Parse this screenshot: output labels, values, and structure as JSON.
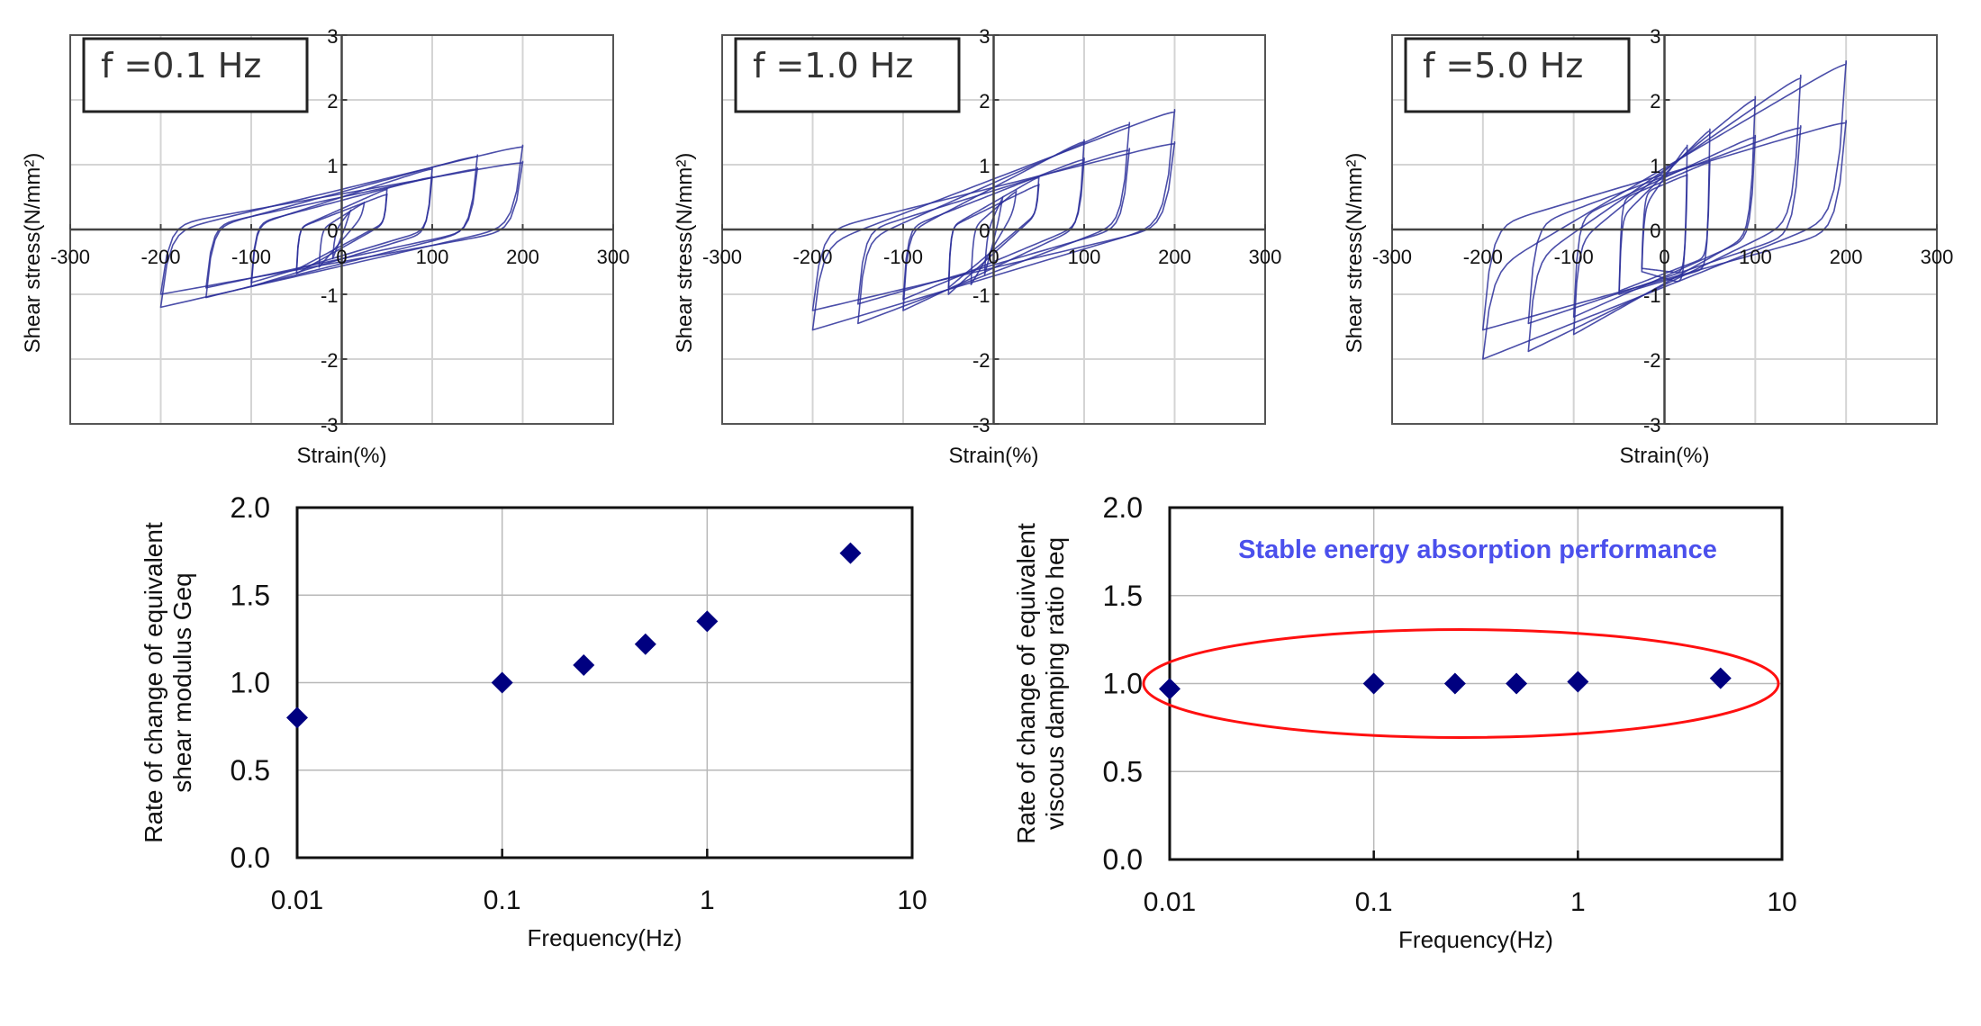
{
  "hysteresis_charts": [
    {
      "id": "f01",
      "label": "f =0.1 Hz",
      "xlabel": "Strain(%)",
      "ylabel": "Shear stress(N/mm²)",
      "xticks": [
        "-300",
        "-200",
        "-100",
        "0",
        "100",
        "200",
        "300"
      ],
      "yticks": [
        "3",
        "2",
        "1",
        "0",
        "-1",
        "-2",
        "-3"
      ]
    },
    {
      "id": "f10",
      "label": "f =1.0 Hz",
      "xlabel": "Strain(%)",
      "ylabel": "Shear stress(N/mm²)",
      "xticks": [
        "-300",
        "-200",
        "-100",
        "0",
        "100",
        "200",
        "300"
      ],
      "yticks": [
        "3",
        "2",
        "1",
        "0",
        "-1",
        "-2",
        "-3"
      ]
    },
    {
      "id": "f50",
      "label": "f =5.0 Hz",
      "xlabel": "Strain(%)",
      "ylabel": "Shear stress(N/mm²)",
      "xticks": [
        "-300",
        "-200",
        "-100",
        "0",
        "100",
        "200",
        "300"
      ],
      "yticks": [
        "3",
        "2",
        "1",
        "0",
        "-1",
        "-2",
        "-3"
      ]
    }
  ],
  "scatter_charts": [
    {
      "id": "geq",
      "ylabel_line1": "Rate of change of equivalent",
      "ylabel_line2": "shear modulus Geq",
      "xlabel": "Frequency(Hz)",
      "xticks": [
        "0.01",
        "0.1",
        "1",
        "10"
      ],
      "yticks": [
        "2.0",
        "1.5",
        "1.0",
        "0.5",
        "0.0"
      ]
    },
    {
      "id": "heq",
      "ylabel_line1": "Rate of change of equivalent",
      "ylabel_line2": "viscous damping ratio heq",
      "xlabel": "Frequency(Hz)",
      "xticks": [
        "0.01",
        "0.1",
        "1",
        "10"
      ],
      "yticks": [
        "2.0",
        "1.5",
        "1.0",
        "0.5",
        "0.0"
      ],
      "annotation": "Stable energy absorption performance"
    }
  ],
  "colors": {
    "loop": "#2b2f9a",
    "marker": "#000080",
    "ellipse": "#ff1010",
    "annotation": "#4b50ec",
    "grid": "#d4d4d4",
    "axis": "#555555"
  },
  "chart_data": [
    {
      "type": "line",
      "title": "f =0.1 Hz",
      "xlabel": "Strain(%)",
      "ylabel": "Shear stress(N/mm²)",
      "xlim": [
        -300,
        300
      ],
      "ylim": [
        -3,
        3
      ],
      "grid": true,
      "series_description": "hysteresis loops, two cycles per strain amplitude",
      "loops": [
        {
          "amplitude": 200,
          "peak_pos": 1.3,
          "peak_neg": -1.2,
          "intercept": 0.62
        },
        {
          "amplitude": 200,
          "peak_pos": 1.05,
          "peak_neg": -1.0,
          "intercept": 0.55
        },
        {
          "amplitude": 150,
          "peak_pos": 1.15,
          "peak_neg": -1.05,
          "intercept": 0.58
        },
        {
          "amplitude": 150,
          "peak_pos": 0.95,
          "peak_neg": -0.9,
          "intercept": 0.5
        },
        {
          "amplitude": 100,
          "peak_pos": 0.95,
          "peak_neg": -0.88,
          "intercept": 0.5
        },
        {
          "amplitude": 100,
          "peak_pos": 0.82,
          "peak_neg": -0.82,
          "intercept": 0.45
        },
        {
          "amplitude": 50,
          "peak_pos": 0.63,
          "peak_neg": -0.68,
          "intercept": 0.32
        },
        {
          "amplitude": 50,
          "peak_pos": 0.55,
          "peak_neg": -0.62,
          "intercept": 0.28
        },
        {
          "amplitude": 25,
          "peak_pos": 0.42,
          "peak_neg": -0.58,
          "intercept": 0.2
        },
        {
          "amplitude": 10,
          "peak_pos": 0.3,
          "peak_neg": -0.45,
          "intercept": 0.12
        }
      ]
    },
    {
      "type": "line",
      "title": "f =1.0 Hz",
      "xlabel": "Strain(%)",
      "ylabel": "Shear stress(N/mm²)",
      "xlim": [
        -300,
        300
      ],
      "ylim": [
        -3,
        3
      ],
      "grid": true,
      "series_description": "hysteresis loops, two cycles per strain amplitude",
      "loops": [
        {
          "amplitude": 200,
          "peak_pos": 1.85,
          "peak_neg": -1.55,
          "intercept": 0.78
        },
        {
          "amplitude": 200,
          "peak_pos": 1.35,
          "peak_neg": -1.25,
          "intercept": 0.65
        },
        {
          "amplitude": 150,
          "peak_pos": 1.65,
          "peak_neg": -1.45,
          "intercept": 0.72
        },
        {
          "amplitude": 150,
          "peak_pos": 1.25,
          "peak_neg": -1.15,
          "intercept": 0.6
        },
        {
          "amplitude": 100,
          "peak_pos": 1.38,
          "peak_neg": -1.25,
          "intercept": 0.65
        },
        {
          "amplitude": 100,
          "peak_pos": 1.1,
          "peak_neg": -1.08,
          "intercept": 0.55
        },
        {
          "amplitude": 50,
          "peak_pos": 0.82,
          "peak_neg": -1.0,
          "intercept": 0.42
        },
        {
          "amplitude": 50,
          "peak_pos": 0.7,
          "peak_neg": -0.9,
          "intercept": 0.36
        },
        {
          "amplitude": 25,
          "peak_pos": 0.6,
          "peak_neg": -0.85,
          "intercept": 0.3
        },
        {
          "amplitude": 10,
          "peak_pos": 0.5,
          "peak_neg": -0.7,
          "intercept": 0.2
        }
      ]
    },
    {
      "type": "line",
      "title": "f =5.0 Hz",
      "xlabel": "Strain(%)",
      "ylabel": "Shear stress(N/mm²)",
      "xlim": [
        -300,
        300
      ],
      "ylim": [
        -3,
        3
      ],
      "grid": true,
      "series_description": "hysteresis loops, two cycles per strain amplitude",
      "loops": [
        {
          "amplitude": 200,
          "peak_pos": 2.6,
          "peak_neg": -2.0,
          "intercept": 0.95
        },
        {
          "amplitude": 200,
          "peak_pos": 1.68,
          "peak_neg": -1.55,
          "intercept": 0.85
        },
        {
          "amplitude": 150,
          "peak_pos": 2.38,
          "peak_neg": -1.88,
          "intercept": 0.92
        },
        {
          "amplitude": 150,
          "peak_pos": 1.6,
          "peak_neg": -1.45,
          "intercept": 0.82
        },
        {
          "amplitude": 100,
          "peak_pos": 2.05,
          "peak_neg": -1.62,
          "intercept": 0.9
        },
        {
          "amplitude": 100,
          "peak_pos": 1.45,
          "peak_neg": -1.35,
          "intercept": 0.8
        },
        {
          "amplitude": 50,
          "peak_pos": 1.55,
          "peak_neg": -1.0,
          "intercept": 0.85
        },
        {
          "amplitude": 50,
          "peak_pos": 1.05,
          "peak_neg": -0.95,
          "intercept": 0.75
        },
        {
          "amplitude": 25,
          "peak_pos": 1.3,
          "peak_neg": -0.65,
          "intercept": 0.8
        },
        {
          "amplitude": 25,
          "peak_pos": 0.85,
          "peak_neg": -0.6,
          "intercept": 0.7
        }
      ]
    },
    {
      "type": "scatter",
      "title": "",
      "xlabel": "Frequency(Hz)",
      "ylabel": "Rate of change of equivalent shear modulus Geq",
      "xscale": "log",
      "xlim": [
        0.01,
        10
      ],
      "ylim": [
        0,
        2.0
      ],
      "grid": true,
      "x": [
        0.01,
        0.1,
        0.25,
        0.5,
        1,
        5
      ],
      "y": [
        0.8,
        1.0,
        1.1,
        1.22,
        1.35,
        1.74
      ]
    },
    {
      "type": "scatter",
      "title": "",
      "xlabel": "Frequency(Hz)",
      "ylabel": "Rate of change of equivalent viscous damping ratio heq",
      "xscale": "log",
      "xlim": [
        0.01,
        10
      ],
      "ylim": [
        0,
        2.0
      ],
      "grid": true,
      "x": [
        0.01,
        0.1,
        0.25,
        0.5,
        1,
        5
      ],
      "y": [
        0.97,
        1.0,
        1.0,
        1.0,
        1.01,
        1.03
      ],
      "annotations": [
        {
          "text": "Stable energy absorption performance",
          "type": "text"
        },
        {
          "type": "ellipse",
          "around": "all points",
          "y_center": 1.0
        }
      ]
    }
  ]
}
